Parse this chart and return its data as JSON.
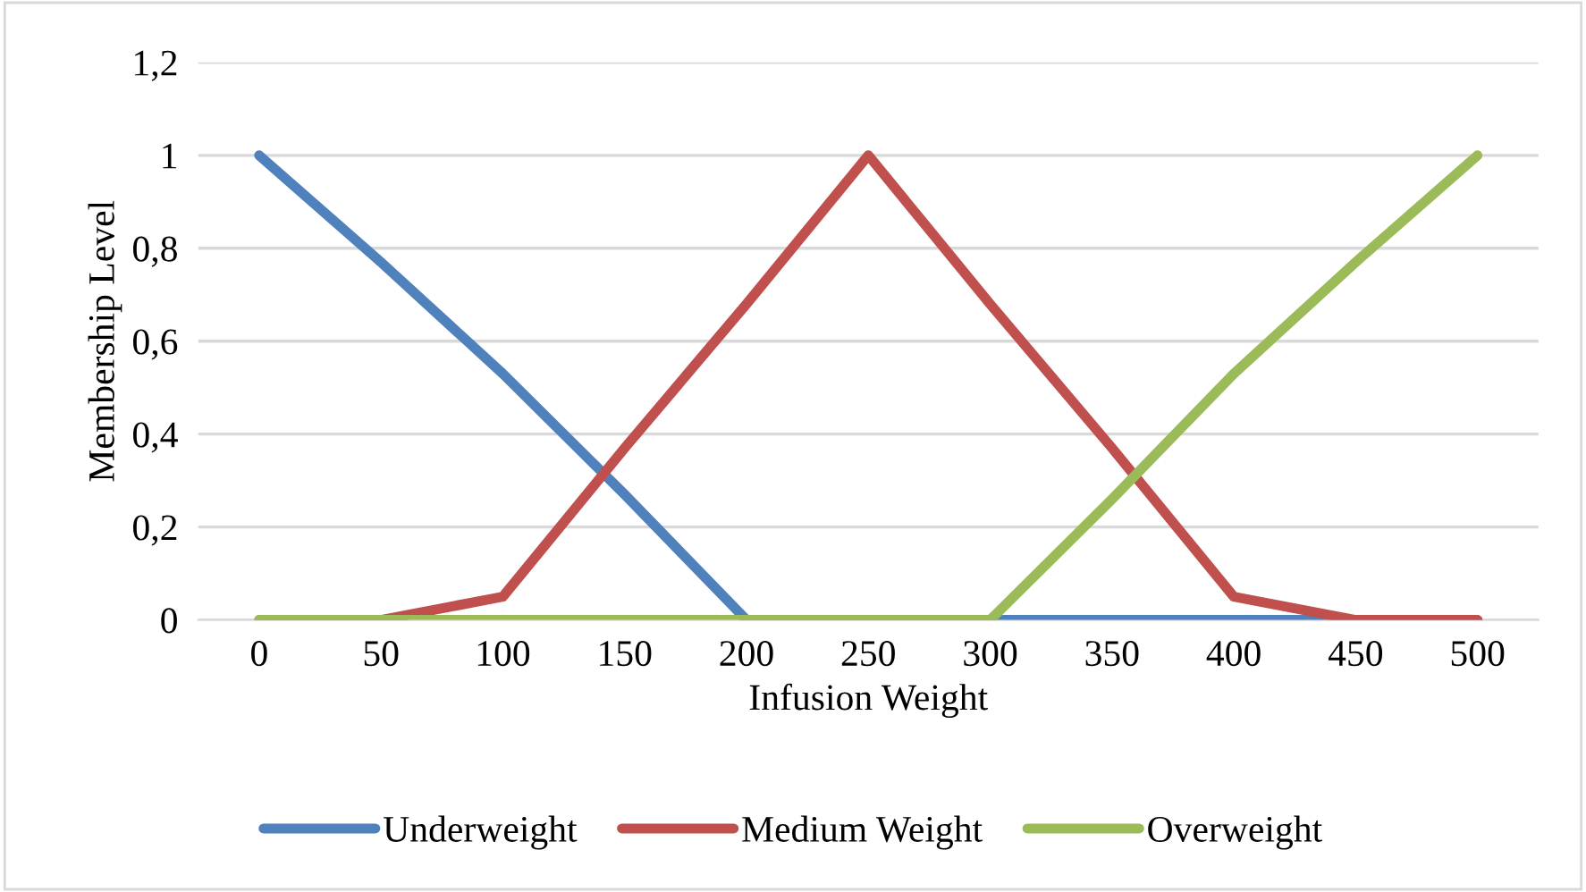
{
  "chart_data": {
    "type": "line",
    "xlabel": "Infusion Weight",
    "ylabel": "Membership Level",
    "categories": [
      "0",
      "50",
      "100",
      "150",
      "200",
      "250",
      "300",
      "350",
      "400",
      "450",
      "500"
    ],
    "series": [
      {
        "name": "Underweight",
        "color": "#4f81bd",
        "values": [
          1,
          0.77,
          0.53,
          0.27,
          0,
          0,
          0,
          0,
          0,
          0,
          0
        ]
      },
      {
        "name": "Medium Weight",
        "color": "#c0504d",
        "values": [
          0,
          0,
          0.05,
          0.37,
          0.68,
          1,
          0.68,
          0.37,
          0.05,
          0,
          0
        ]
      },
      {
        "name": "Overweight",
        "color": "#9bbb59",
        "values": [
          0,
          0,
          0,
          0,
          0,
          0,
          0,
          0.26,
          0.53,
          0.77,
          1
        ]
      }
    ],
    "ylim": [
      0,
      1.2
    ],
    "yticks": [
      0,
      {
        "value": 0.2,
        "label": "0,2"
      },
      {
        "value": 0.4,
        "label": "0,4"
      },
      {
        "value": 0.6,
        "label": "0,6"
      },
      {
        "value": 0.8,
        "label": "0,8"
      },
      1,
      {
        "value": 1.2,
        "label": "1,2"
      }
    ],
    "grid": "y",
    "legend": "bottom",
    "marker": "none",
    "line_style": "solid"
  }
}
